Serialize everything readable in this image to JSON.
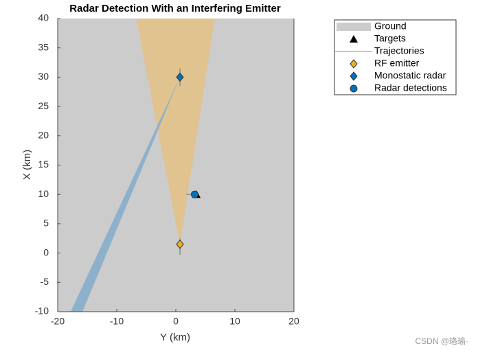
{
  "chart_data": {
    "type": "theater",
    "title": "Radar Detection With an Interfering Emitter",
    "xlabel": "Y (km)",
    "ylabel": "X (km)",
    "xlim": [
      -20,
      20
    ],
    "ylim": [
      -10,
      40
    ],
    "xticks": [
      -20,
      -10,
      0,
      10,
      20
    ],
    "yticks": [
      -10,
      -5,
      0,
      5,
      10,
      15,
      20,
      25,
      30,
      35,
      40
    ],
    "beams": [
      {
        "color": "#e3c28a",
        "x": [
          0.7,
          -6.7,
          6.6
        ],
        "values": [
          1.5,
          40,
          40
        ]
      },
      {
        "color": "#86aecb",
        "x": [
          0.7,
          -17.8,
          -15.8
        ],
        "values": [
          30,
          -10,
          -10
        ]
      }
    ],
    "series": [
      {
        "name": "Ground",
        "color": "#cccccc"
      },
      {
        "name": "Targets",
        "color": "#000000",
        "marker": "triangle",
        "x": [
          3.5
        ],
        "values": [
          10
        ]
      },
      {
        "name": "Trajectories",
        "color": "#8c8c8c",
        "marker": "line",
        "x": [
          1.8,
          3.5,
          null,
          0.7,
          0.7,
          null,
          0.7,
          0.7
        ],
        "values": [
          10,
          10,
          null,
          -0.3,
          2.5,
          null,
          28.5,
          31.5
        ]
      },
      {
        "name": "RF emitter",
        "color": "#edb120",
        "marker": "diamond",
        "x": [
          0.7
        ],
        "values": [
          1.5
        ]
      },
      {
        "name": "Monostatic radar",
        "color": "#0072bd",
        "marker": "diamond",
        "x": [
          0.7
        ],
        "values": [
          30
        ]
      },
      {
        "name": "Radar detections",
        "color": "#0072bd",
        "marker": "circle",
        "x": [
          3.2
        ],
        "values": [
          10
        ]
      }
    ],
    "watermark": "CSDN @珞瑜·"
  }
}
